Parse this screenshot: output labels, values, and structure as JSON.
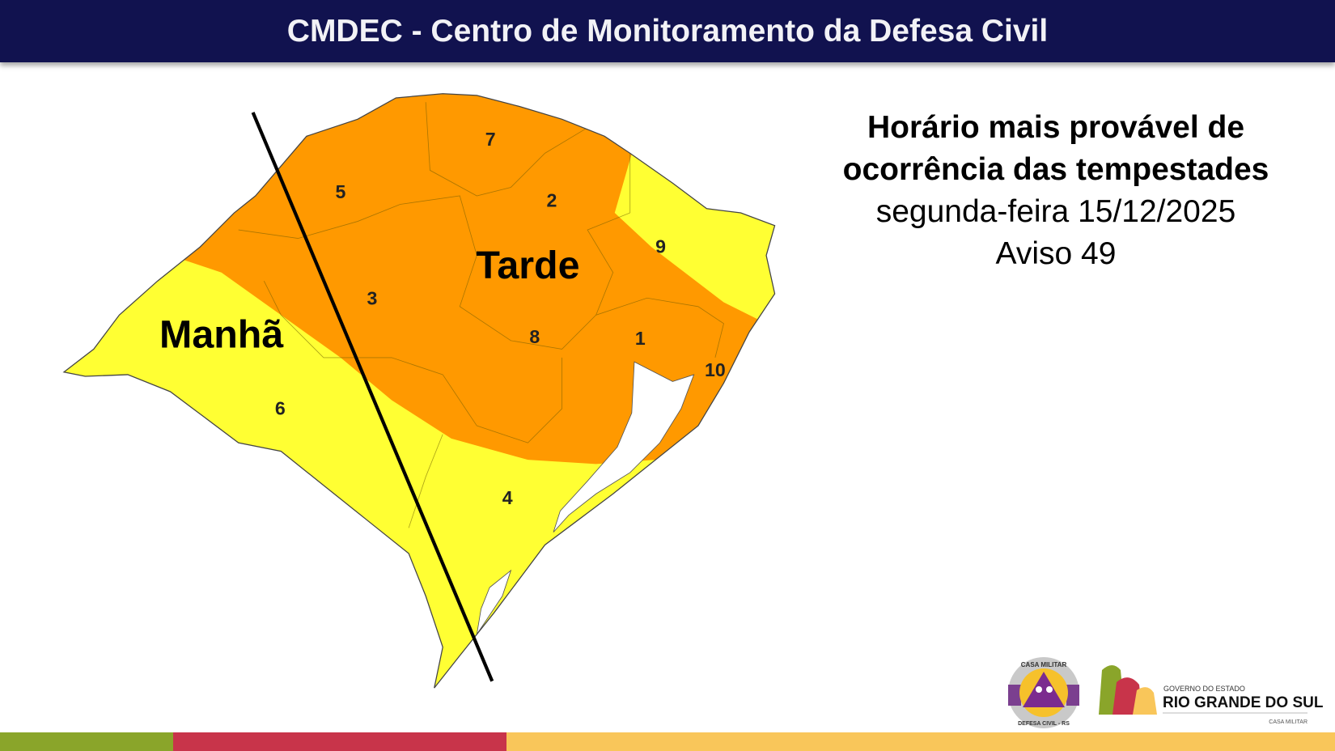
{
  "header": {
    "title": "CMDEC - Centro de Monitoramento da Defesa Civil"
  },
  "info": {
    "title_line1": "Horário mais provável de",
    "title_line2": "ocorrência das tempestades",
    "date": "segunda-feira 15/12/2025",
    "notice": "Aviso 49"
  },
  "map": {
    "periods": {
      "morning": "Manhã",
      "afternoon": "Tarde"
    },
    "regions": [
      "1",
      "2",
      "3",
      "4",
      "5",
      "6",
      "7",
      "8",
      "9",
      "10"
    ],
    "colors": {
      "morning": "#ffff33",
      "afternoon": "#ff9900",
      "line": "#000000"
    }
  },
  "logos": {
    "defesa_civil": {
      "top": "CASA MILITAR",
      "bottom": "DEFESA CIVIL - RS"
    },
    "government": {
      "line1": "GOVERNO DO ESTADO",
      "line2": "RIO GRANDE DO SUL",
      "line3": "CASA MILITAR"
    }
  },
  "footer_colors": [
    "#8aa52a",
    "#c8344a",
    "#f9c65a"
  ]
}
